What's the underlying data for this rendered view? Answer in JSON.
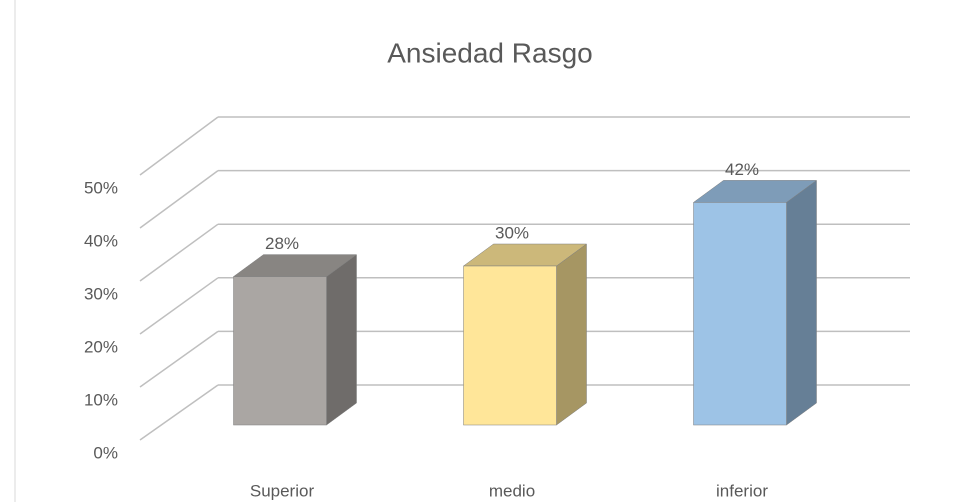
{
  "chart_data": {
    "type": "bar3d",
    "title": "Ansiedad Rasgo",
    "categories": [
      "Superior",
      "medio",
      "inferior"
    ],
    "values": [
      28,
      30,
      42
    ],
    "value_labels": [
      "28%",
      "30%",
      "42%"
    ],
    "colors": [
      "#aaa6a3",
      "#ffe699",
      "#9dc3e6"
    ],
    "ylim": [
      0,
      50
    ],
    "yticks": [
      {
        "value": 0,
        "label": "0%"
      },
      {
        "value": 10,
        "label": "10%"
      },
      {
        "value": 20,
        "label": "20%"
      },
      {
        "value": 30,
        "label": "30%"
      },
      {
        "value": 40,
        "label": "40%"
      },
      {
        "value": 50,
        "label": "50%"
      }
    ],
    "grid": true
  }
}
